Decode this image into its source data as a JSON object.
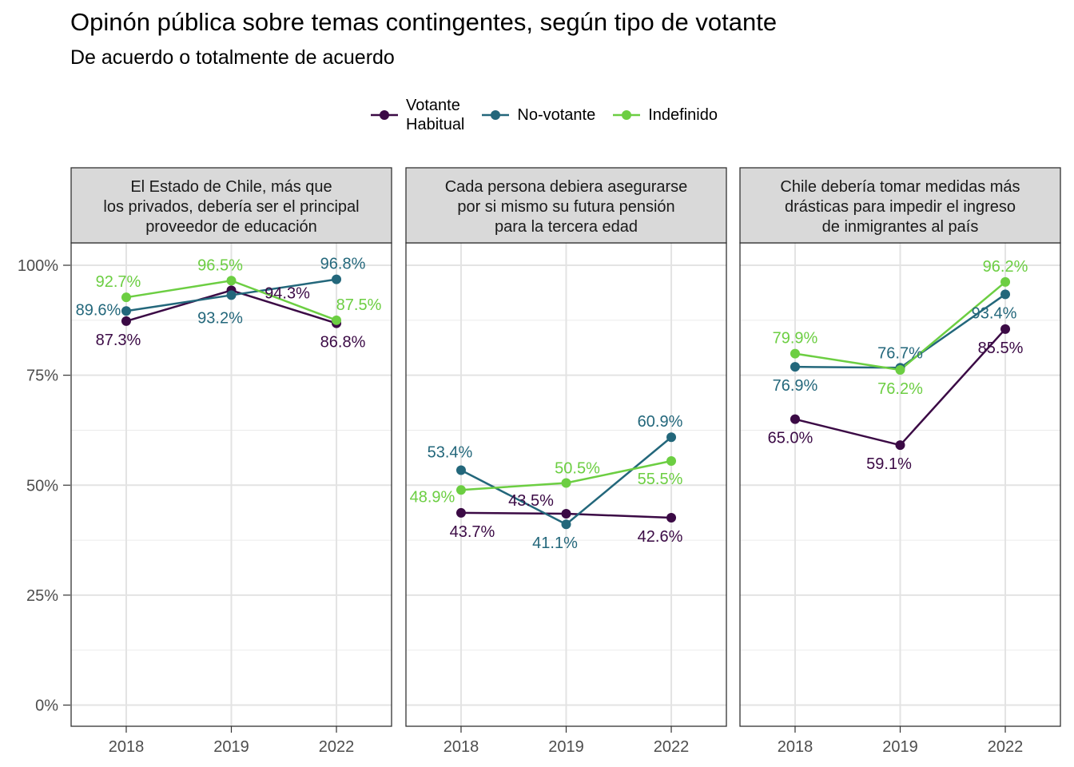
{
  "title": "Opinón pública sobre temas contingentes, según tipo de votante",
  "subtitle": "De acuerdo o totalmente de acuerdo",
  "colors": {
    "Votante Habitual": "#3b0a45",
    "No-votante": "#23677b",
    "Indefinido": "#6cce42"
  },
  "legend": [
    {
      "name": "Votante\nHabitual",
      "key": "Votante Habitual",
      "icon": "line-point"
    },
    {
      "name": "No-votante",
      "key": "No-votante",
      "icon": "line-point"
    },
    {
      "name": "Indefinido",
      "key": "Indefinido",
      "icon": "line-point"
    }
  ],
  "chart_data": {
    "type": "line",
    "x": [
      "2018",
      "2019",
      "2022"
    ],
    "y_ticks": [
      "0%",
      "25%",
      "50%",
      "75%",
      "100%"
    ],
    "ylim": [
      0,
      1.0
    ],
    "grid": true,
    "legend_position": "top",
    "panels": [
      {
        "title": "El Estado de Chile, más que\nlos privados, debería ser el principal\nproveedor de educación",
        "series": [
          {
            "name": "Votante Habitual",
            "values": [
              0.873,
              0.943,
              0.868
            ],
            "labels": [
              "87.3%",
              "94.3%",
              "86.8%"
            ]
          },
          {
            "name": "No-votante",
            "values": [
              0.896,
              0.932,
              0.968
            ],
            "labels": [
              "89.6%",
              "93.2%",
              "96.8%"
            ]
          },
          {
            "name": "Indefinido",
            "values": [
              0.927,
              0.965,
              0.875
            ],
            "labels": [
              "92.7%",
              "96.5%",
              "87.5%"
            ]
          }
        ]
      },
      {
        "title": "Cada persona debiera asegurarse\npor si mismo su futura pensión\npara la tercera edad",
        "series": [
          {
            "name": "Votante Habitual",
            "values": [
              0.437,
              0.435,
              0.426
            ],
            "labels": [
              "43.7%",
              "43.5%",
              "42.6%"
            ]
          },
          {
            "name": "No-votante",
            "values": [
              0.534,
              0.411,
              0.609
            ],
            "labels": [
              "53.4%",
              "41.1%",
              "60.9%"
            ]
          },
          {
            "name": "Indefinido",
            "values": [
              0.489,
              0.505,
              0.555
            ],
            "labels": [
              "48.9%",
              "50.5%",
              "55.5%"
            ]
          }
        ]
      },
      {
        "title": "Chile debería tomar medidas más\ndrásticas para impedir el ingreso\nde inmigrantes al país",
        "series": [
          {
            "name": "Votante Habitual",
            "values": [
              0.65,
              0.591,
              0.855
            ],
            "labels": [
              "65.0%",
              "59.1%",
              "85.5%"
            ]
          },
          {
            "name": "No-votante",
            "values": [
              0.769,
              0.767,
              0.934
            ],
            "labels": [
              "76.9%",
              "76.7%",
              "93.4%"
            ]
          },
          {
            "name": "Indefinido",
            "values": [
              0.799,
              0.762,
              0.962
            ],
            "labels": [
              "79.9%",
              "76.2%",
              "96.2%"
            ]
          }
        ]
      }
    ]
  }
}
